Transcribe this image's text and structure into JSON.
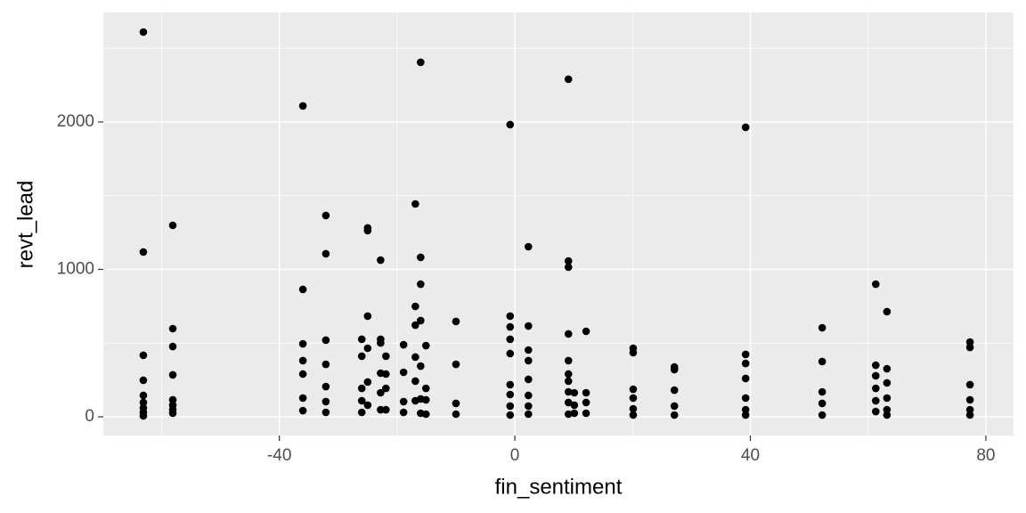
{
  "chart_data": {
    "type": "scatter",
    "x_label": "fin_sentiment",
    "y_label": "revt_lead",
    "x": [
      -63.1,
      -63.1,
      -63.1,
      -63.1,
      -63.1,
      -63.1,
      -63.1,
      -63.1,
      -63.1,
      -58.1,
      -58.1,
      -58.1,
      -58.1,
      -58.1,
      -58.1,
      -58.1,
      -58.1,
      -36,
      -36,
      -36,
      -36,
      -36,
      -36,
      -36,
      -32.1,
      -32.1,
      -32.1,
      -32.1,
      -32.1,
      -32.1,
      -32.1,
      -26,
      -26,
      -26,
      -26,
      -26,
      -25,
      -25,
      -25,
      -25,
      -25,
      -25,
      -22.8,
      -22.8,
      -22.8,
      -22.8,
      -22.8,
      -22.8,
      -21.9,
      -21.9,
      -21.9,
      -21.9,
      -18.9,
      -18.9,
      -18.9,
      -18.9,
      -16.9,
      -16.9,
      -16.9,
      -16.9,
      -16.9,
      -16.9,
      -16,
      -16,
      -16,
      -16,
      -16,
      -16,
      -16,
      -15.1,
      -15.1,
      -15.1,
      -15.1,
      -10,
      -10,
      -10,
      -10,
      -0.8,
      -0.8,
      -0.8,
      -0.8,
      -0.8,
      -0.8,
      -0.8,
      -0.8,
      -0.8,
      2.3,
      2.3,
      2.3,
      2.3,
      2.3,
      2.3,
      2.3,
      2.3,
      9.1,
      9.1,
      9.1,
      9.1,
      9.1,
      9.1,
      9.1,
      9.1,
      9.1,
      9.1,
      10.1,
      10.1,
      10.1,
      12.1,
      12.1,
      12.1,
      12.1,
      20.1,
      20.1,
      20.1,
      20.1,
      20.1,
      20.1,
      27.1,
      27.1,
      27.1,
      27.1,
      27.1,
      39.2,
      39.2,
      39.2,
      39.2,
      39.2,
      39.2,
      39.2,
      52.2,
      52.2,
      52.2,
      52.2,
      52.2,
      61.3,
      61.3,
      61.3,
      61.3,
      61.3,
      61.3,
      63.2,
      63.2,
      63.2,
      63.2,
      63.2,
      63.2,
      77.3,
      77.3,
      77.3,
      77.3,
      77.3,
      77.3
    ],
    "y": [
      2610,
      1118,
      417,
      248,
      145,
      97,
      60,
      30,
      6,
      1299,
      598,
      477,
      284,
      115,
      79,
      48,
      24,
      2109,
      864,
      495,
      381,
      290,
      127,
      42,
      1366,
      1106,
      520,
      356,
      205,
      103,
      30,
      526,
      411,
      193,
      109,
      30,
      1281,
      1263,
      683,
      465,
      236,
      79,
      1063,
      526,
      501,
      296,
      163,
      48,
      411,
      290,
      193,
      48,
      489,
      302,
      103,
      30,
      1444,
      749,
      622,
      405,
      242,
      109,
      2405,
      1082,
      900,
      653,
      344,
      121,
      24,
      483,
      193,
      115,
      18,
      647,
      356,
      91,
      18,
      1982,
      683,
      610,
      526,
      429,
      218,
      151,
      73,
      12,
      1154,
      616,
      453,
      381,
      254,
      145,
      73,
      18,
      2290,
      1057,
      1015,
      562,
      381,
      290,
      242,
      169,
      97,
      18,
      163,
      79,
      24,
      580,
      163,
      97,
      24,
      465,
      435,
      187,
      127,
      54,
      12,
      338,
      320,
      181,
      73,
      12,
      1964,
      423,
      362,
      260,
      127,
      48,
      12,
      604,
      375,
      169,
      91,
      12,
      900,
      350,
      278,
      193,
      109,
      36,
      713,
      326,
      230,
      127,
      48,
      12,
      507,
      471,
      218,
      115,
      48,
      12
    ],
    "color": "#000000",
    "xlim": [
      -69.9,
      84.7
    ],
    "ylim": [
      -127,
      2743
    ],
    "xticks": [
      -40,
      0,
      40,
      80
    ],
    "yticks": [
      0,
      1000,
      2000
    ],
    "x_minor_ticks": [
      -60,
      -20,
      20,
      60
    ],
    "y_minor_ticks": [
      500,
      1500,
      2500
    ],
    "grid": true
  }
}
